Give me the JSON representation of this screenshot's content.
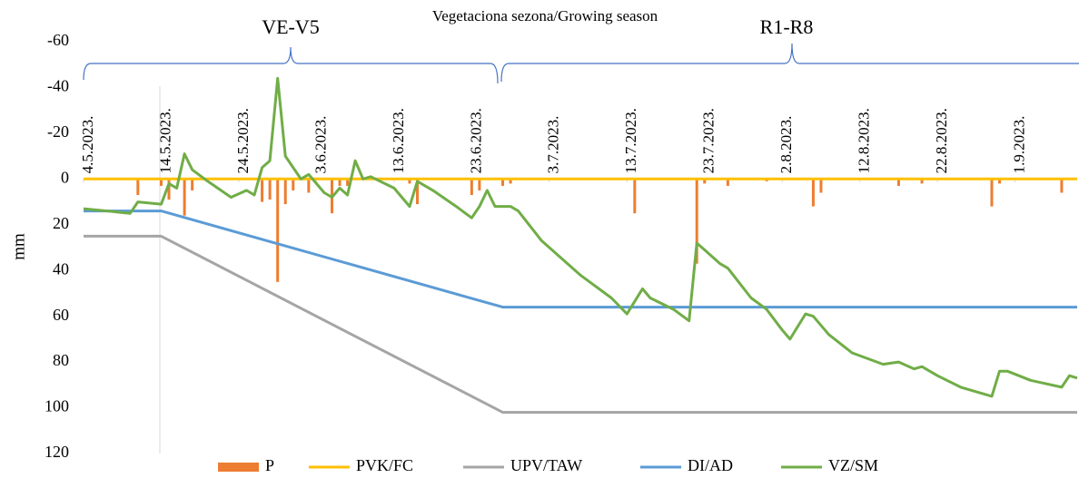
{
  "chart_data": {
    "type": "combo",
    "title": "Vegetaciona sezona/Growing season",
    "ylabel": "mm",
    "annotations": [
      "VE-V5",
      "R1-R8"
    ],
    "ylim": [
      -60,
      120
    ],
    "y_reversed": true,
    "yticks": [
      -60,
      -40,
      -20,
      0,
      20,
      40,
      60,
      80,
      100,
      120
    ],
    "xlim": [
      "2023-05-04",
      "2023-09-09"
    ],
    "xticks": [
      {
        "value": "2023-05-04",
        "label": "4.5.2023."
      },
      {
        "value": "2023-05-14",
        "label": "14.5.2023."
      },
      {
        "value": "2023-05-24",
        "label": "24.5.2023."
      },
      {
        "value": "2023-06-03",
        "label": "3.6.2023."
      },
      {
        "value": "2023-06-13",
        "label": "13.6.2023."
      },
      {
        "value": "2023-06-23",
        "label": "23.6.2023."
      },
      {
        "value": "2023-07-03",
        "label": "3.7.2023."
      },
      {
        "value": "2023-07-13",
        "label": "13.7.2023."
      },
      {
        "value": "2023-07-23",
        "label": "23.7.2023."
      },
      {
        "value": "2023-08-02",
        "label": "2.8.2023."
      },
      {
        "value": "2023-08-12",
        "label": "12.8.2023."
      },
      {
        "value": "2023-08-22",
        "label": "22.8.2023."
      },
      {
        "value": "2023-09-01",
        "label": "1.9.2023."
      }
    ],
    "series": [
      {
        "name": "P",
        "type": "bar",
        "color": "#ed7d31",
        "x": [
          "2023-05-11",
          "2023-05-14",
          "2023-05-15",
          "2023-05-17",
          "2023-05-18",
          "2023-05-27",
          "2023-05-28",
          "2023-05-29",
          "2023-05-30",
          "2023-05-31",
          "2023-06-02",
          "2023-06-05",
          "2023-06-06",
          "2023-06-07",
          "2023-06-15",
          "2023-06-16",
          "2023-06-23",
          "2023-06-24",
          "2023-06-27",
          "2023-06-28",
          "2023-07-14",
          "2023-07-22",
          "2023-07-23",
          "2023-07-26",
          "2023-07-31",
          "2023-08-06",
          "2023-08-07",
          "2023-08-17",
          "2023-08-20",
          "2023-08-29",
          "2023-08-30",
          "2023-09-07"
        ],
        "values": [
          7,
          3,
          9,
          16,
          5,
          10,
          9,
          45,
          11,
          5,
          6,
          15,
          3,
          3,
          2,
          11,
          7,
          5,
          3,
          2,
          15,
          37,
          2,
          3,
          1,
          12,
          6,
          3,
          2,
          12,
          2,
          6
        ]
      },
      {
        "name": "PVK/FC",
        "type": "line",
        "color": "#ffc000",
        "x": [
          "2023-05-04",
          "2023-09-09"
        ],
        "values": [
          0,
          0
        ]
      },
      {
        "name": "UPV/TAW",
        "type": "line",
        "color": "#a5a5a5",
        "x": [
          "2023-05-04",
          "2023-05-14",
          "2023-06-27",
          "2023-09-09"
        ],
        "values": [
          25,
          25,
          102,
          102
        ]
      },
      {
        "name": "DI/AD",
        "type": "line",
        "color": "#5b9bd5",
        "x": [
          "2023-05-04",
          "2023-05-14",
          "2023-06-27",
          "2023-09-09"
        ],
        "values": [
          14,
          14,
          56,
          56
        ]
      },
      {
        "name": "VZ/SM",
        "type": "line",
        "color": "#70ad47",
        "x": [
          "2023-05-04",
          "2023-05-10",
          "2023-05-11",
          "2023-05-14",
          "2023-05-15",
          "2023-05-16",
          "2023-05-17",
          "2023-05-18",
          "2023-05-20",
          "2023-05-23",
          "2023-05-25",
          "2023-05-26",
          "2023-05-27",
          "2023-05-28",
          "2023-05-29",
          "2023-05-30",
          "2023-06-01",
          "2023-06-02",
          "2023-06-03",
          "2023-06-04",
          "2023-06-05",
          "2023-06-06",
          "2023-06-07",
          "2023-06-08",
          "2023-06-09",
          "2023-06-10",
          "2023-06-13",
          "2023-06-15",
          "2023-06-16",
          "2023-06-18",
          "2023-06-21",
          "2023-06-23",
          "2023-06-24",
          "2023-06-25",
          "2023-06-26",
          "2023-06-28",
          "2023-06-29",
          "2023-07-02",
          "2023-07-07",
          "2023-07-11",
          "2023-07-13",
          "2023-07-15",
          "2023-07-16",
          "2023-07-19",
          "2023-07-21",
          "2023-07-22",
          "2023-07-23",
          "2023-07-25",
          "2023-07-26",
          "2023-07-29",
          "2023-07-31",
          "2023-08-02",
          "2023-08-03",
          "2023-08-05",
          "2023-08-06",
          "2023-08-08",
          "2023-08-11",
          "2023-08-15",
          "2023-08-17",
          "2023-08-19",
          "2023-08-20",
          "2023-08-22",
          "2023-08-25",
          "2023-08-29",
          "2023-08-30",
          "2023-08-31",
          "2023-09-03",
          "2023-09-07",
          "2023-09-08",
          "2023-09-09"
        ],
        "values": [
          13,
          15,
          10,
          11,
          2,
          4,
          -11,
          -4,
          1,
          8,
          5,
          7,
          -5,
          -8,
          -44,
          -10,
          0,
          -2,
          2,
          6,
          8,
          4,
          7,
          -8,
          0,
          -1,
          4,
          12,
          1,
          5,
          12,
          17,
          12,
          5,
          12,
          12,
          14,
          27,
          42,
          52,
          59,
          48,
          52,
          57,
          62,
          28,
          31,
          37,
          39,
          52,
          57,
          66,
          70,
          59,
          60,
          68,
          76,
          81,
          80,
          83,
          82,
          86,
          91,
          95,
          84,
          84,
          88,
          91,
          86,
          87
        ]
      }
    ]
  }
}
